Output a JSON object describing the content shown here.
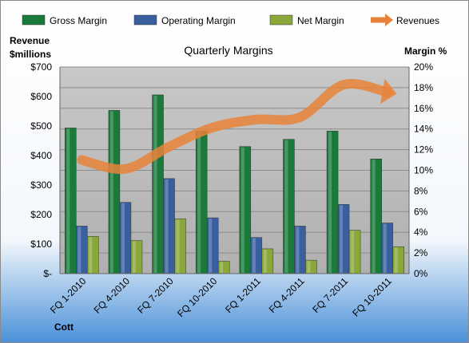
{
  "chart_data": {
    "type": "bar",
    "title": "Quarterly Margins",
    "categories": [
      "FQ 1-2010",
      "FQ 4-2010",
      "FQ 7-2010",
      "FQ 10-2010",
      "FQ 1-2011",
      "FQ 4-2011",
      "FQ 7-2011",
      "FQ 10-2011"
    ],
    "series": [
      {
        "name": "Gross Margin",
        "axis": "right",
        "values": [
          14.1,
          15.8,
          17.3,
          13.8,
          12.3,
          13.0,
          13.8,
          11.1
        ],
        "color": "#1a7a3a"
      },
      {
        "name": "Operating Margin",
        "axis": "right",
        "values": [
          4.6,
          6.9,
          9.2,
          5.4,
          3.5,
          4.6,
          6.7,
          4.9
        ],
        "color": "#3a5f9f"
      },
      {
        "name": "Net Margin",
        "axis": "right",
        "values": [
          3.6,
          3.2,
          5.3,
          1.2,
          2.4,
          1.3,
          4.2,
          2.6
        ],
        "color": "#8aa83a"
      },
      {
        "name": "Revenues",
        "axis": "left",
        "type": "line",
        "values": [
          385,
          355,
          430,
          495,
          522,
          530,
          640,
          615
        ],
        "color": "#e8823a"
      }
    ],
    "ylabel_left": [
      "Revenue",
      "$millions"
    ],
    "ylabel_right": "Margin %",
    "ylim_left": [
      0,
      700
    ],
    "ylim_right": [
      0,
      20
    ],
    "yticks_left": [
      "$-",
      "$100",
      "$200",
      "$300",
      "$400",
      "$500",
      "$600",
      "$700"
    ],
    "yticks_right": [
      "0%",
      "2%",
      "4%",
      "6%",
      "8%",
      "10%",
      "12%",
      "14%",
      "16%",
      "18%",
      "20%"
    ],
    "legend_position": "top",
    "grid": true,
    "company": "Cott"
  }
}
